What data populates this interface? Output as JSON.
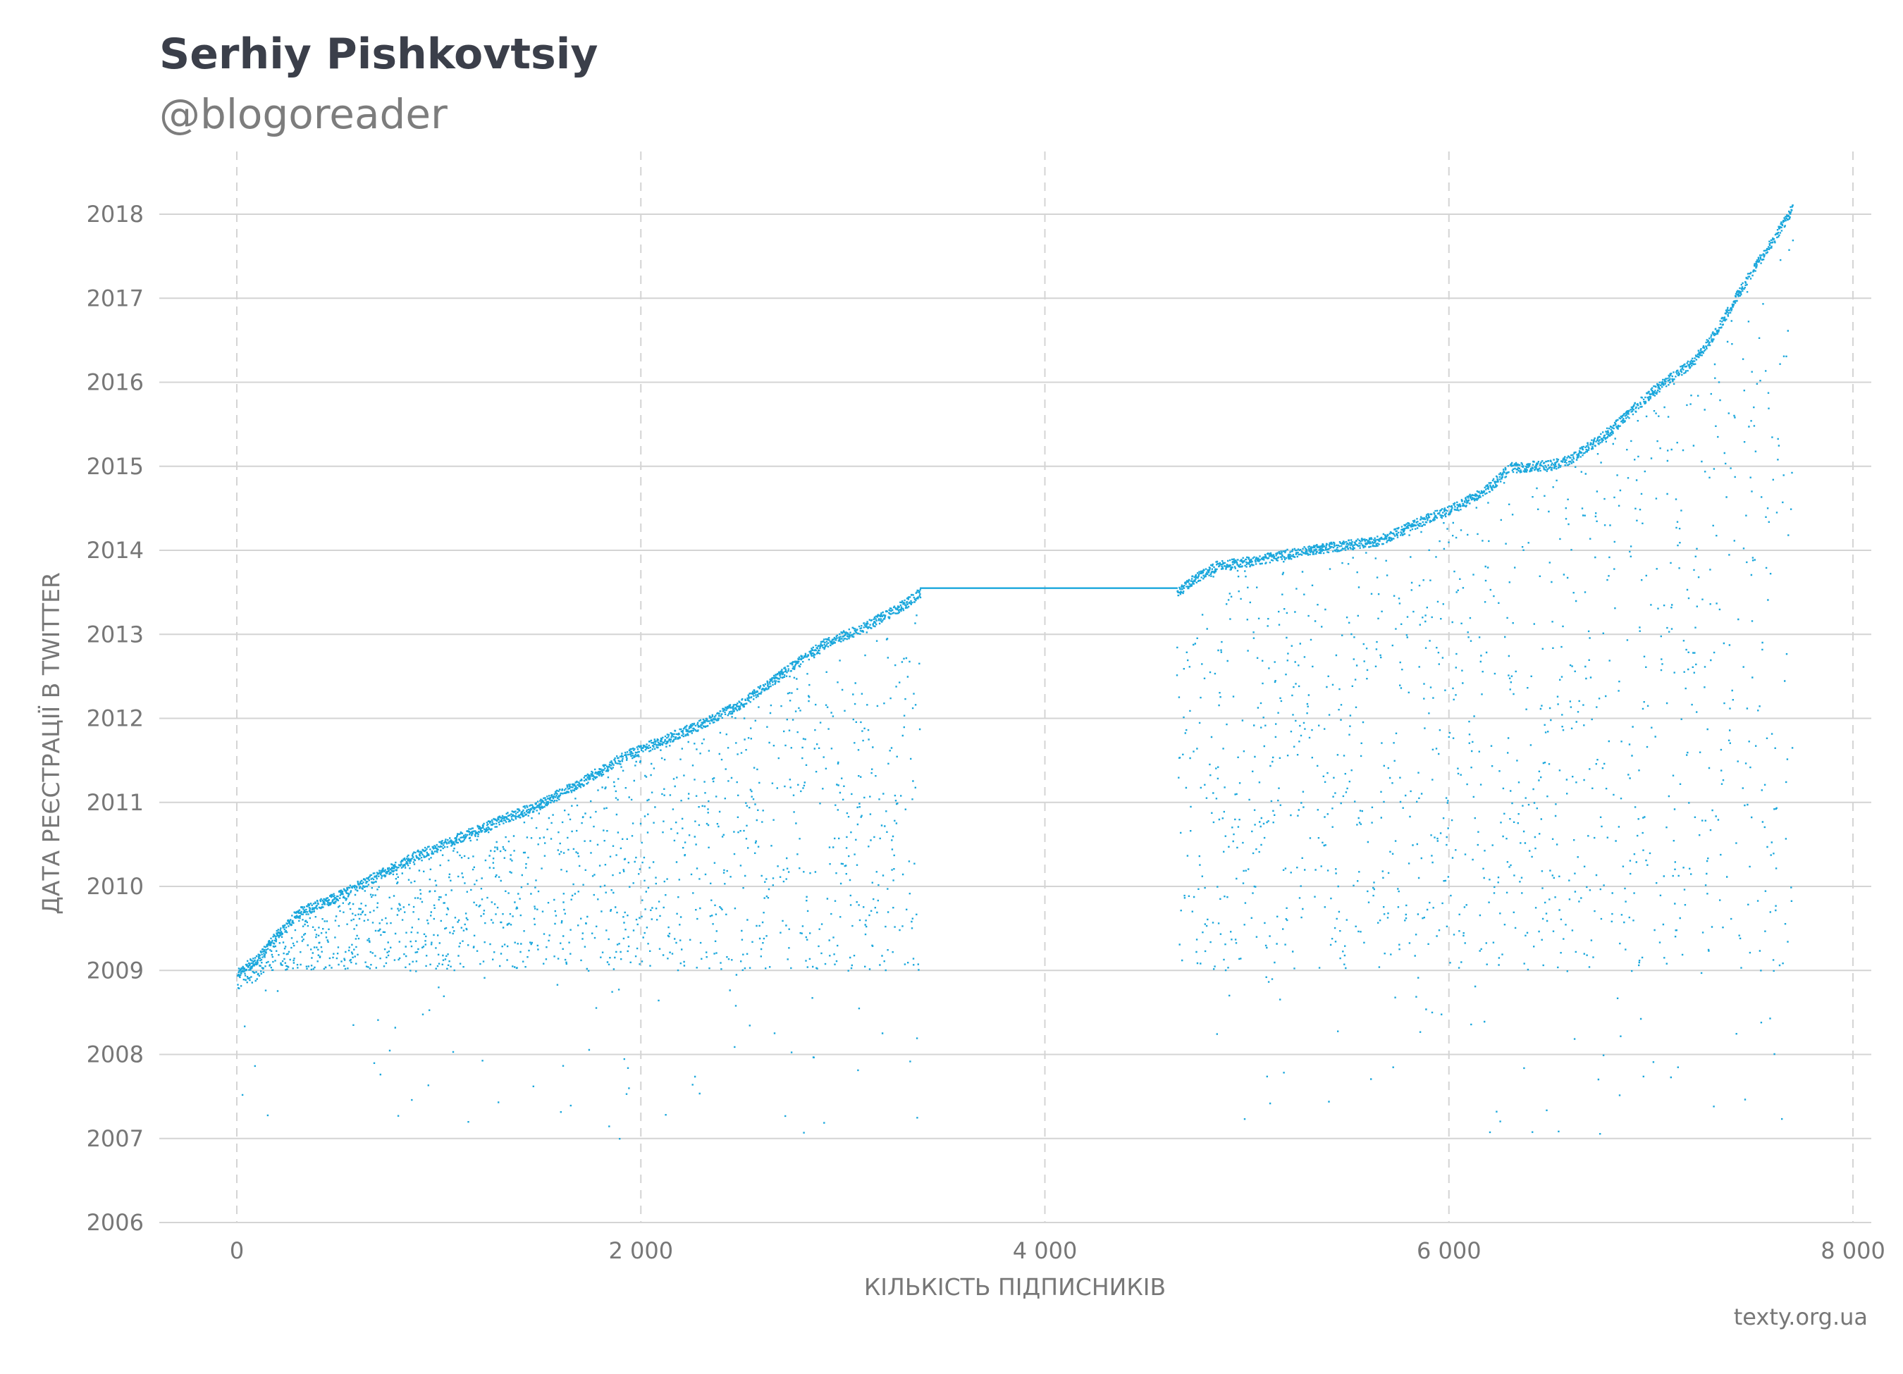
{
  "header": {
    "title": "Serhiy Pishkovtsiy",
    "subtitle": "@blogoreader"
  },
  "footer": {
    "credit": "texty.org.ua"
  },
  "colors": {
    "points": "#1aa7dc",
    "grid": "#d4d4d4",
    "text": "#777777"
  },
  "chart_data": {
    "type": "scatter",
    "title": "Serhiy Pishkovtsiy",
    "subtitle": "@blogoreader",
    "xlabel": "КІЛЬКІСТЬ ПІДПИСНИКІВ",
    "ylabel": "ДАТА РЕЄСТРАЦІЇ В TWITTER",
    "xlim": [
      -150,
      8050
    ],
    "ylim": [
      2006,
      2018.8
    ],
    "x_ticks": [
      0,
      2000,
      4000,
      6000,
      8000
    ],
    "x_tick_labels": [
      "0",
      "2 000",
      "4 000",
      "6 000",
      "8 000"
    ],
    "y_ticks": [
      2006,
      2007,
      2008,
      2009,
      2010,
      2011,
      2012,
      2013,
      2014,
      2015,
      2016,
      2017,
      2018
    ],
    "y_tick_labels": [
      "2006",
      "2007",
      "2008",
      "2009",
      "2010",
      "2011",
      "2012",
      "2013",
      "2014",
      "2015",
      "2016",
      "2017",
      "2018"
    ],
    "grid": {
      "x": "dashed",
      "y": "solid"
    },
    "point_count": 7700,
    "upper_envelope": [
      [
        0,
        2009.05
      ],
      [
        100,
        2009.2
      ],
      [
        200,
        2009.5
      ],
      [
        300,
        2009.75
      ],
      [
        500,
        2009.95
      ],
      [
        700,
        2010.2
      ],
      [
        900,
        2010.45
      ],
      [
        1100,
        2010.65
      ],
      [
        1300,
        2010.85
      ],
      [
        1500,
        2011.05
      ],
      [
        1700,
        2011.3
      ],
      [
        1900,
        2011.6
      ],
      [
        2100,
        2011.8
      ],
      [
        2300,
        2012.0
      ],
      [
        2500,
        2012.25
      ],
      [
        2700,
        2012.6
      ],
      [
        2900,
        2012.95
      ],
      [
        3100,
        2013.15
      ],
      [
        3300,
        2013.42
      ],
      [
        3380,
        2013.56
      ],
      [
        4650,
        2013.56
      ],
      [
        4750,
        2013.75
      ],
      [
        4850,
        2013.88
      ],
      [
        5000,
        2013.93
      ],
      [
        5150,
        2014.0
      ],
      [
        5400,
        2014.1
      ],
      [
        5650,
        2014.18
      ],
      [
        5850,
        2014.4
      ],
      [
        6050,
        2014.6
      ],
      [
        6200,
        2014.82
      ],
      [
        6300,
        2015.05
      ],
      [
        6500,
        2015.08
      ],
      [
        6600,
        2015.15
      ],
      [
        6800,
        2015.5
      ],
      [
        7000,
        2015.95
      ],
      [
        7200,
        2016.3
      ],
      [
        7300,
        2016.6
      ],
      [
        7400,
        2017.0
      ],
      [
        7500,
        2017.4
      ],
      [
        7600,
        2017.75
      ],
      [
        7700,
        2018.15
      ]
    ],
    "segments": [
      {
        "x_start": 0,
        "x_end": 3380,
        "min_date": 2006.9
      },
      {
        "x_start": 3380,
        "x_end": 4650,
        "min_date": 2013.56
      },
      {
        "x_start": 4650,
        "x_end": 7700,
        "min_date": 2006.55
      }
    ]
  }
}
